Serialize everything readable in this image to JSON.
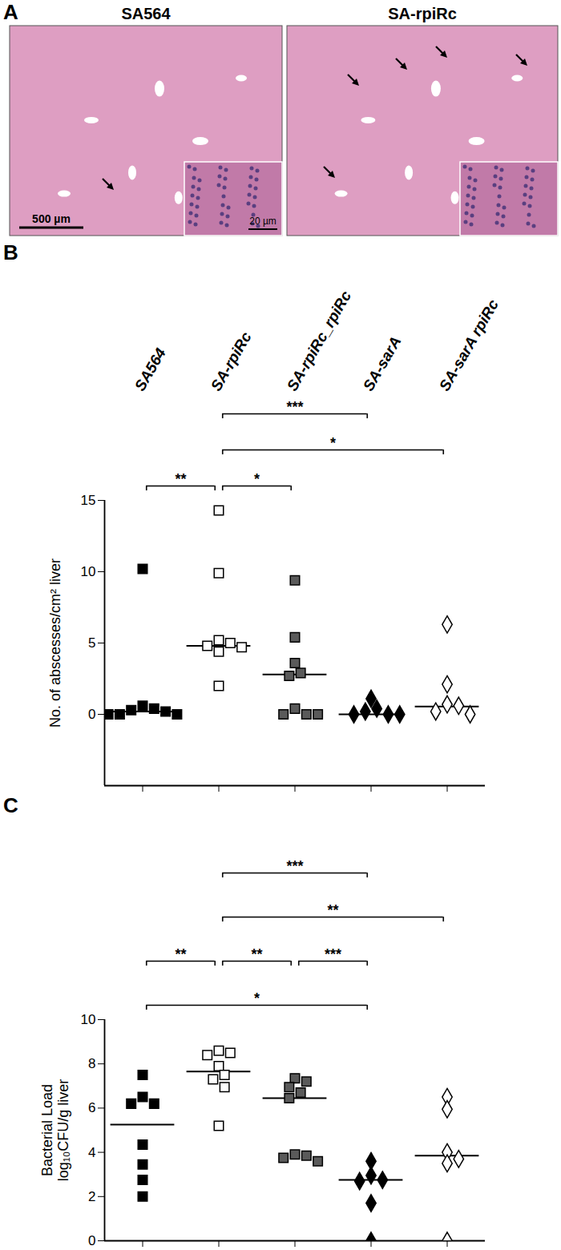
{
  "chart_data": [
    {
      "type": "image",
      "title": "A",
      "images": [
        {
          "title": "SA564",
          "scale_bar": "500 µm",
          "inset_scale_bar": "20 µm"
        },
        {
          "title": "SA-rpiRc"
        }
      ]
    },
    {
      "type": "scatter",
      "title": "B",
      "categories": [
        "SA564",
        "SA-rpiRc",
        "SA-rpiRc_rpiRc",
        "SA-sarA",
        "SA-sarA rpiRc"
      ],
      "y_label": "No. of abscesses/cm² liver",
      "ylim": [
        -5,
        15
      ],
      "yticks": [
        0,
        5,
        10,
        15
      ],
      "colors": [
        "#000000",
        "#000000",
        "#5a5a5a",
        "#000000",
        "#000000"
      ],
      "markers": [
        "square",
        "square-open",
        "square",
        "diamond",
        "diamond-open"
      ],
      "values": [
        [
          10.2,
          0.6,
          0.3,
          0,
          0,
          0,
          0.2,
          0.4
        ],
        [
          14.3,
          9.9,
          5.2,
          5.0,
          4.8,
          4.4,
          4.7,
          2.0
        ],
        [
          9.4,
          5.4,
          3.6,
          2.9,
          2.7,
          0.4,
          0,
          0,
          0
        ],
        [
          1.1,
          0.4,
          0.2,
          0,
          0,
          0
        ],
        [
          6.3,
          2.1,
          0.7,
          0.6,
          0.2,
          0
        ]
      ],
      "medians": [
        0.2,
        4.8,
        2.8,
        0,
        0.55
      ],
      "comparisons": [
        {
          "from": "SA-rpiRc",
          "to": "SA-sarA",
          "label": "***"
        },
        {
          "from": "SA-rpiRc",
          "to": "SA-sarA rpiRc",
          "label": "*"
        },
        {
          "from": "SA564",
          "to": "SA-rpiRc",
          "label": "**"
        },
        {
          "from": "SA-rpiRc",
          "to": "SA-rpiRc_rpiRc",
          "label": "*"
        }
      ]
    },
    {
      "type": "scatter",
      "title": "C",
      "categories": [
        "SA564",
        "SA-rpiRc",
        "SA-rpiRc_rpiRc",
        "SA-sarA",
        "SA-sarA rpiRc"
      ],
      "tick_labels": "y",
      "y_label": "Bacterial Load\nlog₁₀CFU/g liver",
      "ylim": [
        0,
        10
      ],
      "yticks": [
        0,
        2,
        4,
        6,
        8,
        10
      ],
      "colors": [
        "#000000",
        "#000000",
        "#5a5a5a",
        "#000000",
        "#000000"
      ],
      "markers": [
        "square",
        "square-open",
        "square",
        "diamond",
        "diamond-open"
      ],
      "values": [
        [
          7.5,
          6.5,
          6.2,
          6.2,
          4.35,
          3.45,
          2.75,
          2.0
        ],
        [
          8.6,
          8.4,
          8.5,
          7.9,
          7.5,
          7.3,
          6.95,
          5.2
        ],
        [
          7.35,
          7.2,
          6.95,
          6.7,
          6.45,
          3.9,
          3.85,
          3.75,
          3.6
        ],
        [
          3.6,
          2.95,
          2.75,
          2.7,
          1.7,
          0
        ],
        [
          6.5,
          5.95,
          4.0,
          3.7,
          3.5,
          0
        ]
      ],
      "medians": [
        5.25,
        7.65,
        6.45,
        2.75,
        3.85
      ],
      "comparisons": [
        {
          "from": "SA-rpiRc",
          "to": "SA-sarA",
          "label": "***"
        },
        {
          "from": "SA-rpiRc",
          "to": "SA-sarA rpiRc",
          "label": "**"
        },
        {
          "from": "SA564",
          "to": "SA-rpiRc",
          "label": "**"
        },
        {
          "from": "SA-rpiRc",
          "to": "SA-rpiRc_rpiRc",
          "label": "**"
        },
        {
          "from": "SA-rpiRc_rpiRc",
          "to": "SA-sarA",
          "label": "***"
        },
        {
          "from": "SA564",
          "to": "SA-sarA",
          "label": "*"
        }
      ]
    }
  ]
}
